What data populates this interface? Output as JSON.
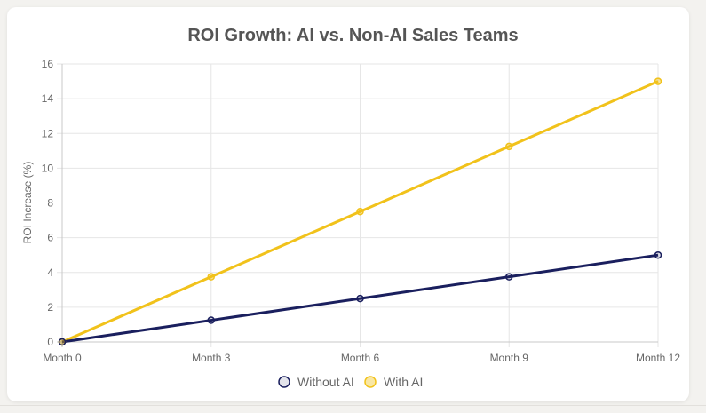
{
  "chart_data": {
    "type": "line",
    "title": "ROI Growth: AI vs. Non-AI Sales Teams",
    "xlabel": "",
    "ylabel": "ROI Increase (%)",
    "categories": [
      "Month 0",
      "Month 3",
      "Month 6",
      "Month 9",
      "Month 12"
    ],
    "ylim": [
      0,
      16
    ],
    "yticks": [
      0,
      2,
      4,
      6,
      8,
      10,
      12,
      14,
      16
    ],
    "grid": true,
    "legend_position": "bottom",
    "series": [
      {
        "name": "Without AI",
        "values": [
          0,
          1.25,
          2.5,
          3.75,
          5
        ],
        "color": "#1a1f5e"
      },
      {
        "name": "With AI",
        "values": [
          0,
          3.75,
          7.5,
          11.25,
          15
        ],
        "color": "#f1c21b"
      }
    ]
  }
}
